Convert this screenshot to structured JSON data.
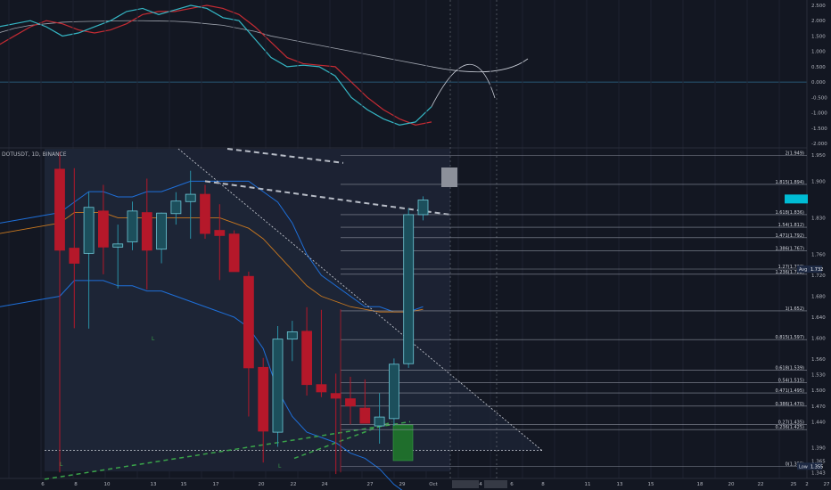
{
  "symbol": {
    "text": "DOTUSDT",
    "interval": "1D",
    "exchange": "BINANCE"
  },
  "colors": {
    "background": "#131722",
    "up": "#2a8fa4",
    "down": "#b5182a",
    "grid": "#1e2230",
    "fib": "#8a8f9c",
    "macd": "#35b6c4",
    "signal": "#c42b33",
    "bb": "#1e6fd9",
    "ma": "#c9781f"
  },
  "oscillator": {
    "ticks": [
      "2.500",
      "2.000",
      "1.500",
      "1.000",
      "0.500",
      "0.000",
      "-0.500",
      "-1.000",
      "-1.500",
      "-2.000"
    ],
    "macd": [
      1.8,
      1.9,
      2.0,
      1.8,
      1.5,
      1.6,
      1.8,
      2.0,
      2.3,
      2.4,
      2.2,
      2.35,
      2.5,
      2.4,
      2.1,
      2.0,
      1.4,
      0.8,
      0.5,
      0.55,
      0.5,
      0.2,
      -0.5,
      -0.9,
      -1.2,
      -1.4,
      -1.3,
      -0.8
    ],
    "signal": [
      1.2,
      1.5,
      1.8,
      2.0,
      1.9,
      1.7,
      1.6,
      1.7,
      1.9,
      2.2,
      2.3,
      2.3,
      2.4,
      2.5,
      2.4,
      2.2,
      1.8,
      1.3,
      0.8,
      0.6,
      0.55,
      0.5,
      0.0,
      -0.5,
      -0.9,
      -1.2,
      -1.4,
      -1.3
    ],
    "trend": [
      1.6,
      1.75,
      1.85,
      1.9,
      1.95,
      1.97,
      1.98,
      1.99,
      2.0,
      2.0,
      1.99,
      1.98,
      1.95,
      1.9,
      1.85,
      1.75,
      1.65,
      1.5,
      1.4,
      1.3,
      1.2,
      1.1,
      1.0,
      0.9,
      0.8,
      0.7,
      0.6,
      0.5
    ]
  },
  "chart_data": {
    "type": "candlestick",
    "candles": [
      {
        "o": 1.923,
        "h": 1.956,
        "l": 1.343,
        "c": 1.768
      },
      {
        "o": 1.772,
        "h": 1.925,
        "l": 1.619,
        "c": 1.743
      },
      {
        "o": 1.762,
        "h": 1.879,
        "l": 1.618,
        "c": 1.85
      },
      {
        "o": 1.843,
        "h": 1.893,
        "l": 1.722,
        "c": 1.774
      },
      {
        "o": 1.774,
        "h": 1.817,
        "l": 1.695,
        "c": 1.78
      },
      {
        "o": 1.784,
        "h": 1.861,
        "l": 1.768,
        "c": 1.843
      },
      {
        "o": 1.84,
        "h": 1.905,
        "l": 1.693,
        "c": 1.768
      },
      {
        "o": 1.77,
        "h": 1.84,
        "l": 1.743,
        "c": 1.839
      },
      {
        "o": 1.838,
        "h": 1.879,
        "l": 1.817,
        "c": 1.862
      },
      {
        "o": 1.861,
        "h": 1.92,
        "l": 1.79,
        "c": 1.875
      },
      {
        "o": 1.875,
        "h": 1.893,
        "l": 1.79,
        "c": 1.8
      },
      {
        "o": 1.806,
        "h": 1.856,
        "l": 1.711,
        "c": 1.796
      },
      {
        "o": 1.799,
        "h": 1.806,
        "l": 1.727,
        "c": 1.727
      },
      {
        "o": 1.718,
        "h": 1.727,
        "l": 1.45,
        "c": 1.543
      },
      {
        "o": 1.544,
        "h": 1.562,
        "l": 1.362,
        "c": 1.422
      },
      {
        "o": 1.42,
        "h": 1.623,
        "l": 1.392,
        "c": 1.598
      },
      {
        "o": 1.598,
        "h": 1.633,
        "l": 1.556,
        "c": 1.612
      },
      {
        "o": 1.613,
        "h": 1.659,
        "l": 1.49,
        "c": 1.511
      },
      {
        "o": 1.511,
        "h": 1.654,
        "l": 1.487,
        "c": 1.497
      },
      {
        "o": 1.494,
        "h": 1.532,
        "l": 1.34,
        "c": 1.485
      },
      {
        "o": 1.484,
        "h": 1.526,
        "l": 1.435,
        "c": 1.47
      },
      {
        "o": 1.466,
        "h": 1.521,
        "l": 1.443,
        "c": 1.437
      },
      {
        "o": 1.432,
        "h": 1.495,
        "l": 1.398,
        "c": 1.449
      },
      {
        "o": 1.446,
        "h": 1.561,
        "l": 1.432,
        "c": 1.55
      },
      {
        "o": 1.551,
        "h": 1.848,
        "l": 1.543,
        "c": 1.836
      },
      {
        "o": 1.836,
        "h": 1.871,
        "l": 1.825,
        "c": 1.864
      }
    ],
    "y_ticks": [
      "1.950",
      "1.900",
      "1.830",
      "1.760",
      "1.720",
      "1.680",
      "1.640",
      "1.600",
      "1.560",
      "1.530",
      "1.500",
      "1.470",
      "1.440",
      "1.390",
      "1.365",
      "1.343"
    ],
    "x_ticks": [
      "6",
      "8",
      "10",
      "13",
      "15",
      "17",
      "20",
      "22",
      "24",
      "27",
      "29",
      "Oct",
      "4",
      "6",
      "8",
      "11",
      "13",
      "15",
      "18",
      "20",
      "22",
      "25",
      "27",
      "2"
    ],
    "fib_levels": [
      {
        "label": "2(1.949)",
        "value": 1.949
      },
      {
        "label": "1.815(1.894)",
        "value": 1.894
      },
      {
        "label": "1.618(1.836)",
        "value": 1.836
      },
      {
        "label": "1.54(1.812)",
        "value": 1.812
      },
      {
        "label": "1.471(1.792)",
        "value": 1.792
      },
      {
        "label": "1.386(1.767)",
        "value": 1.767
      },
      {
        "label": "1.27(1.732)",
        "value": 1.732
      },
      {
        "label": "1.236(1.722)",
        "value": 1.722
      },
      {
        "label": "1(1.652)",
        "value": 1.652
      },
      {
        "label": "0.815(1.597)",
        "value": 1.597
      },
      {
        "label": "0.618(1.539)",
        "value": 1.539
      },
      {
        "label": "0.54(1.515)",
        "value": 1.515
      },
      {
        "label": "0.471(1.495)",
        "value": 1.495
      },
      {
        "label": "0.386(1.470)",
        "value": 1.47
      },
      {
        "label": "0.27(1.435)",
        "value": 1.435
      },
      {
        "label": "0.236(1.425)",
        "value": 1.425
      },
      {
        "label": "0(1.355)",
        "value": 1.355
      }
    ],
    "price_tags": [
      {
        "label": "Avg",
        "value": "1.732",
        "y": 1.732
      },
      {
        "label": "Low",
        "value": "1.355",
        "y": 1.355
      }
    ],
    "markers": [
      "L",
      "L",
      "L"
    ]
  }
}
